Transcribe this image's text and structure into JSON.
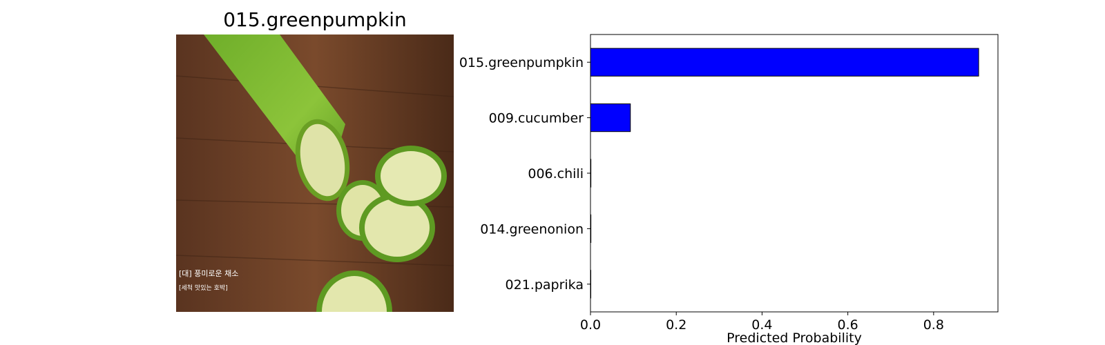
{
  "image_title": "015.greenpumpkin",
  "chart_data": {
    "type": "bar",
    "orientation": "horizontal",
    "categories": [
      "015.greenpumpkin",
      "009.cucumber",
      "006.chili",
      "014.greenonion",
      "021.paprika"
    ],
    "values": [
      0.905,
      0.093,
      0.001,
      0.001,
      0.0005
    ],
    "xlabel": "Predicted Probability",
    "ylabel": "",
    "xlim": [
      0,
      0.95
    ],
    "xticks": [
      "0.0",
      "0.2",
      "0.4",
      "0.6",
      "0.8"
    ],
    "bar_color": "#0000ff",
    "grid": false
  },
  "photo": {
    "overlay_text_1": "[대] 풍미로운 채소",
    "overlay_text_2": "[세척 맛있는 호박]"
  }
}
